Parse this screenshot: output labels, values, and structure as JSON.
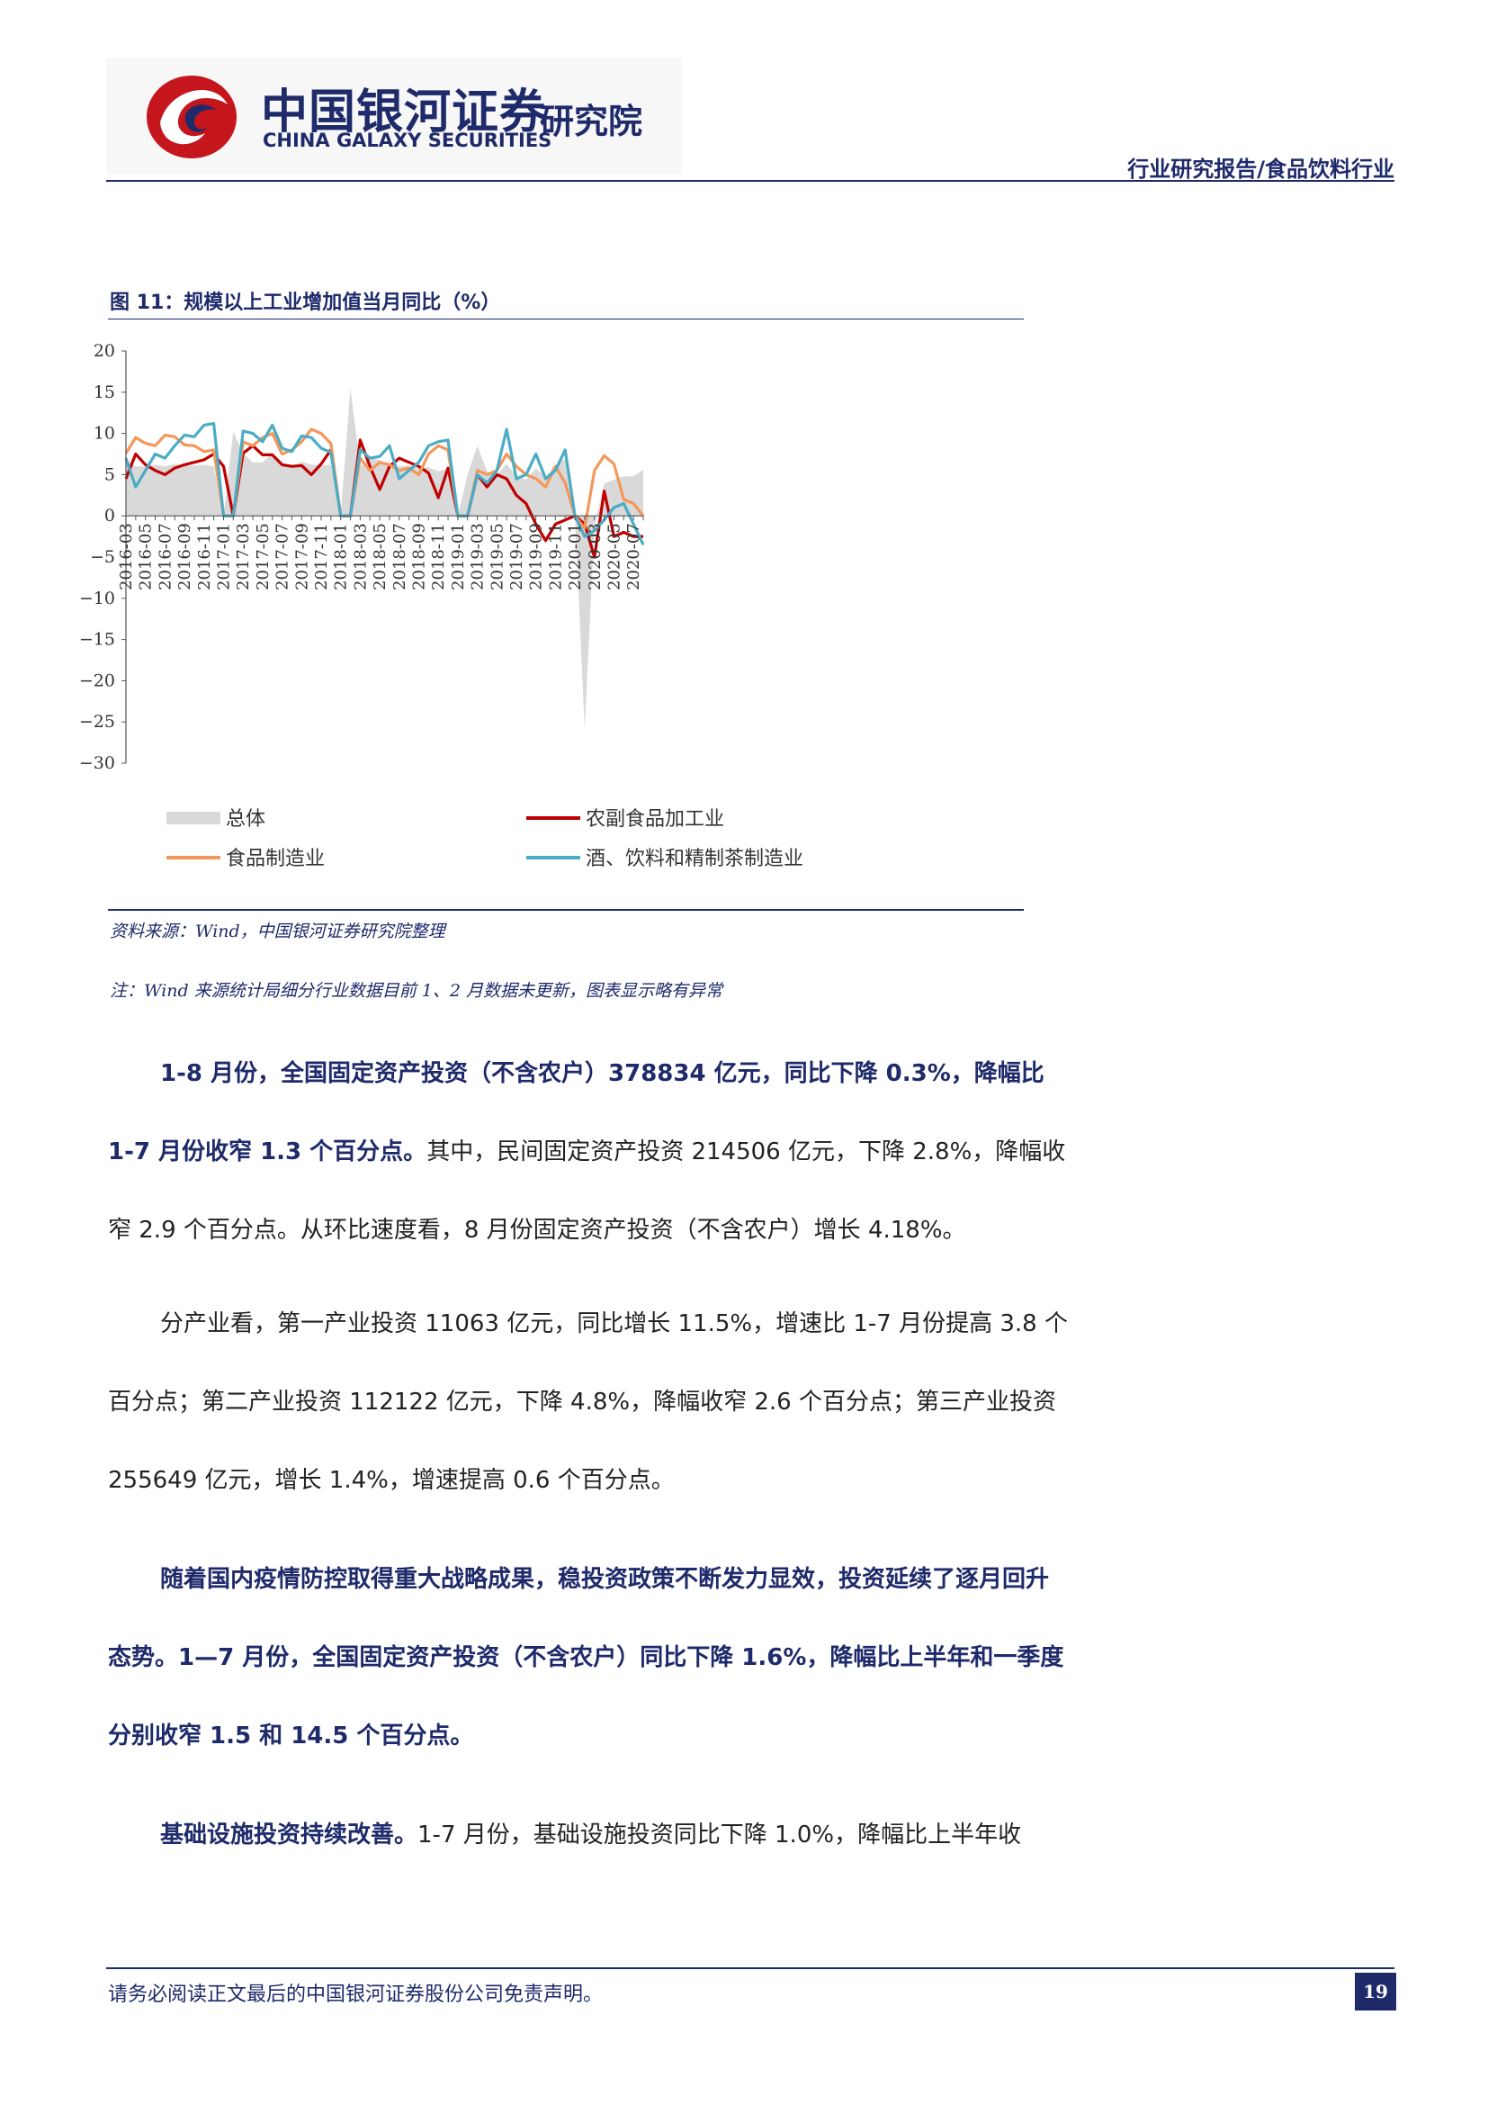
{
  "header": {
    "brand_cn": "中国银河证券",
    "brand_en": "CHINA GALAXY SECURITIES",
    "brand_institute": "研究院",
    "report_type": "行业研究报告/食品饮料行业"
  },
  "figure": {
    "title": "图 11：规模以上工业增加值当月同比（%）",
    "source": "资料来源：Wind，中国银河证券研究院整理",
    "note": "注：Wind 来源统计局细分行业数据目前 1、2 月数据未更新，图表显示略有异常"
  },
  "chart_data": {
    "type": "area",
    "title": "",
    "xlabel": "",
    "ylabel": "",
    "ylim": [
      -30,
      20
    ],
    "yticks": [
      20,
      15,
      10,
      5,
      0,
      -5,
      -10,
      -15,
      -20,
      -25,
      -30
    ],
    "x": [
      "2016-03",
      "2016-04",
      "2016-05",
      "2016-06",
      "2016-07",
      "2016-08",
      "2016-09",
      "2016-10",
      "2016-11",
      "2016-12",
      "2017-01",
      "2017-02",
      "2017-03",
      "2017-04",
      "2017-05",
      "2017-06",
      "2017-07",
      "2017-08",
      "2017-09",
      "2017-10",
      "2017-11",
      "2017-12",
      "2018-01",
      "2018-02",
      "2018-03",
      "2018-04",
      "2018-05",
      "2018-06",
      "2018-07",
      "2018-08",
      "2018-09",
      "2018-10",
      "2018-11",
      "2018-12",
      "2019-01",
      "2019-02",
      "2019-03",
      "2019-04",
      "2019-05",
      "2019-06",
      "2019-07",
      "2019-08",
      "2019-09",
      "2019-10",
      "2019-11",
      "2019-12",
      "2020-01",
      "2020-02",
      "2020-03",
      "2020-04",
      "2020-05",
      "2020-06",
      "2020-07",
      "2020-08"
    ],
    "xtick_labels": [
      "2016-03",
      "2016-05",
      "2016-07",
      "2016-09",
      "2016-11",
      "2017-01",
      "2017-03",
      "2017-05",
      "2017-07",
      "2017-09",
      "2017-11",
      "2018-01",
      "2018-03",
      "2018-05",
      "2018-07",
      "2018-09",
      "2018-11",
      "2019-01",
      "2019-03",
      "2019-05",
      "2019-07",
      "2019-09",
      "2019-11",
      "2020-01",
      "2020-03",
      "2020-05",
      "2020-07"
    ],
    "series": [
      {
        "name": "总体",
        "style": "area",
        "color": "#d9d9d9",
        "values": [
          6.8,
          6.0,
          6.0,
          6.2,
          6.0,
          6.3,
          6.1,
          6.1,
          6.2,
          6.0,
          0,
          10.2,
          7.6,
          6.5,
          6.5,
          7.6,
          6.4,
          6.0,
          6.6,
          6.2,
          6.1,
          6.2,
          0,
          15.5,
          6.0,
          7.0,
          6.8,
          6.0,
          6.0,
          6.1,
          5.8,
          5.9,
          5.4,
          5.7,
          0,
          5.0,
          8.5,
          5.4,
          5.0,
          6.3,
          4.8,
          4.4,
          5.8,
          4.7,
          6.2,
          6.9,
          0,
          -25.9,
          -1.1,
          3.9,
          4.4,
          4.8,
          4.8,
          5.6
        ]
      },
      {
        "name": "农副食品加工业",
        "style": "line",
        "color": "#c00000",
        "values": [
          4.5,
          7.5,
          6.2,
          5.5,
          5.0,
          5.8,
          6.2,
          6.5,
          6.8,
          7.5,
          6.0,
          0,
          7.6,
          8.5,
          7.4,
          7.4,
          6.2,
          6.0,
          6.1,
          5.0,
          6.3,
          8.0,
          0,
          0,
          9.2,
          6.0,
          3.2,
          6.0,
          7.0,
          6.5,
          6.0,
          5.2,
          2.2,
          5.8,
          0,
          0,
          5.0,
          3.5,
          5.0,
          4.5,
          2.5,
          1.5,
          -1.0,
          -3.0,
          -1.0,
          -0.5,
          0,
          -1.0,
          -5.0,
          3.0,
          -2.5,
          -2.0,
          -2.5,
          -2.5
        ]
      },
      {
        "name": "食品制造业",
        "style": "line",
        "color": "#f4975a",
        "values": [
          7.6,
          9.5,
          8.8,
          8.5,
          9.8,
          9.6,
          8.6,
          8.5,
          7.8,
          8.0,
          0,
          0,
          9.0,
          8.5,
          9.5,
          10.0,
          7.5,
          8.0,
          9.0,
          10.5,
          10.0,
          8.8,
          0,
          0,
          7.0,
          5.5,
          6.5,
          6.2,
          5.5,
          5.8,
          5.0,
          7.5,
          8.5,
          8.0,
          0,
          0,
          5.5,
          5.0,
          5.5,
          7.5,
          6.0,
          5.0,
          4.5,
          3.5,
          6.0,
          4.0,
          0,
          -1.5,
          5.5,
          7.3,
          6.3,
          2.0,
          1.5,
          0.0
        ]
      },
      {
        "name": "酒、饮料和精制茶制造业",
        "style": "line",
        "color": "#4bacc6",
        "values": [
          7.0,
          3.5,
          5.5,
          7.5,
          7.0,
          8.5,
          9.8,
          9.6,
          11.0,
          11.2,
          0,
          0,
          10.3,
          10.0,
          9.0,
          11.0,
          8.2,
          7.8,
          9.7,
          9.5,
          8.2,
          7.7,
          0,
          0,
          8.0,
          7.0,
          7.2,
          8.5,
          4.5,
          5.5,
          6.5,
          8.5,
          9.0,
          9.2,
          0,
          0,
          5.0,
          4.0,
          5.5,
          10.5,
          4.5,
          5.0,
          7.5,
          4.5,
          5.5,
          8.0,
          0,
          -2.5,
          -1.8,
          -0.5,
          1.0,
          1.5,
          -1.0,
          -3.5
        ]
      }
    ],
    "legend_position": "bottom",
    "grid": false
  },
  "paragraphs": {
    "p1": {
      "bold": "1-8 月份，全国固定资产投资（不含农户）378834 亿元，同比下降 0.3%，降幅比 1-7 月份收窄 1.3 个百分点。",
      "rest": "其中，民间固定资产投资 214506 亿元，下降 2.8%，降幅收窄 2.9 个百分点。从环比速度看，8 月份固定资产投资（不含农户）增长 4.18%。"
    },
    "p2": {
      "bold": "",
      "rest": "分产业看，第一产业投资 11063 亿元，同比增长 11.5%，增速比 1-7 月份提高 3.8 个百分点；第二产业投资 112122 亿元，下降 4.8%，降幅收窄 2.6 个百分点；第三产业投资 255649 亿元，增长 1.4%，增速提高 0.6 个百分点。"
    },
    "p3": {
      "bold": "随着国内疫情防控取得重大战略成果，稳投资政策不断发力显效，投资延续了逐月回升态势。1—7 月份，全国固定资产投资（不含农户）同比下降 1.6%，降幅比上半年和一季度分别收窄 1.5 和 14.5 个百分点。",
      "rest": ""
    },
    "p4": {
      "bold": "基础设施投资持续改善。",
      "rest": "1-7 月份，基础设施投资同比下降 1.0%，降幅比上半年收"
    }
  },
  "footer": {
    "disclaimer": "请务必阅读正文最后的中国银河证券股份公司免责声明。",
    "page_number": "19"
  },
  "colors": {
    "brand_navy": "#1f2a6b",
    "brand_red": "#c4161c"
  }
}
